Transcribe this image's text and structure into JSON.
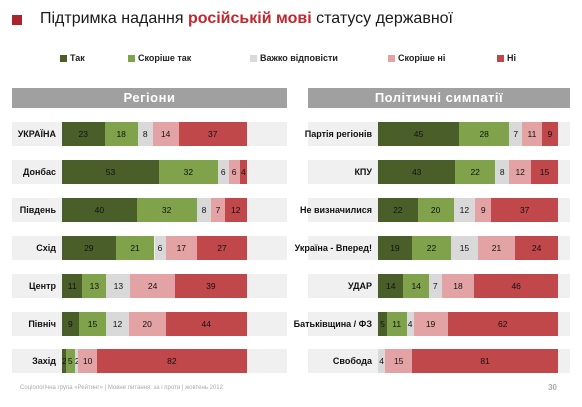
{
  "title": {
    "part1": "Підтримка надання ",
    "highlight": "російській мові",
    "part2": " статусу державної"
  },
  "footer": "Соціологічна група «Рейтинг» | Мовне питання: за і проти | жовтень 2012",
  "page_number": "30",
  "colors": {
    "Так": "#4a5e2a",
    "Скоріше так": "#7fa24a",
    "Важко відповісти": "#d9d9d9",
    "Скоріше ні": "#e3a3a5",
    "Ні": "#c0484b"
  },
  "chart_data": [
    {
      "type": "bar",
      "orientation": "horizontal-stacked",
      "title": "Регіони",
      "legend": [
        "Так",
        "Скоріше так",
        "Важко відповісти",
        "Скоріше ні",
        "Ні"
      ],
      "legend_position": "top",
      "categories": [
        "УКРАЇНА",
        "Донбас",
        "Південь",
        "Схід",
        "Центр",
        "Північ",
        "Захід"
      ],
      "series": [
        {
          "name": "Так",
          "values": [
            23,
            53,
            40,
            29,
            11,
            9,
            2
          ]
        },
        {
          "name": "Скоріше так",
          "values": [
            18,
            32,
            32,
            21,
            13,
            15,
            5
          ]
        },
        {
          "name": "Важко відповісти",
          "values": [
            8,
            6,
            8,
            6,
            13,
            12,
            2
          ]
        },
        {
          "name": "Скоріше ні",
          "values": [
            14,
            6,
            7,
            17,
            24,
            20,
            10
          ]
        },
        {
          "name": "Ні",
          "values": [
            37,
            4,
            12,
            27,
            39,
            44,
            82
          ]
        }
      ]
    },
    {
      "type": "bar",
      "orientation": "horizontal-stacked",
      "title": "Політичні симпатії",
      "legend": [
        "Так",
        "Скоріше так",
        "Важко відповісти",
        "Скоріше ні",
        "Ні"
      ],
      "legend_position": "top",
      "categories": [
        "Партія регіонів",
        "КПУ",
        "Не визначилися",
        "Україна - Вперед!",
        "УДАР",
        "Батьківщина / ФЗ",
        "Свобода"
      ],
      "series": [
        {
          "name": "Так",
          "values": [
            45,
            43,
            22,
            19,
            14,
            5,
            0
          ]
        },
        {
          "name": "Скоріше так",
          "values": [
            28,
            22,
            20,
            22,
            14,
            11,
            0
          ]
        },
        {
          "name": "Важко відповісти",
          "values": [
            7,
            8,
            12,
            15,
            7,
            4,
            4
          ]
        },
        {
          "name": "Скоріше ні",
          "values": [
            11,
            12,
            9,
            21,
            18,
            19,
            15
          ]
        },
        {
          "name": "Ні",
          "values": [
            9,
            15,
            37,
            24,
            46,
            62,
            81
          ]
        }
      ]
    }
  ]
}
